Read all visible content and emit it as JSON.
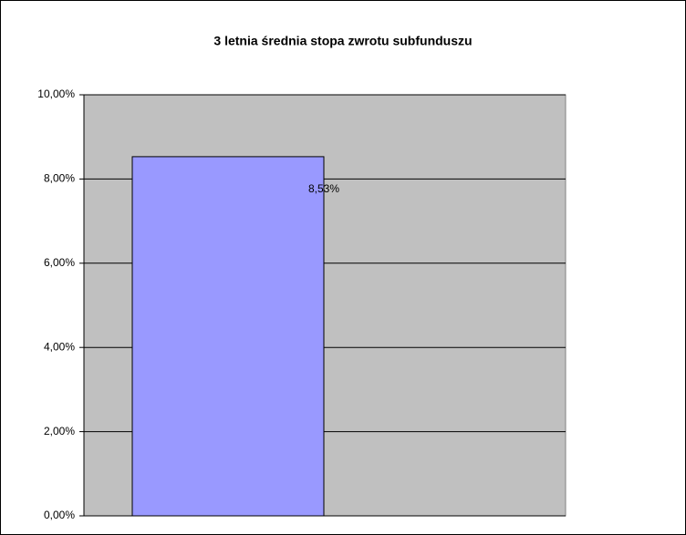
{
  "chart_data": {
    "type": "bar",
    "title": "3 letnia średnia stopa zwrotu subfunduszu",
    "categories": [
      null
    ],
    "values": [
      8.53
    ],
    "value_labels": [
      "8,53%"
    ],
    "color": "#9999ff",
    "ylim": [
      0,
      10
    ],
    "yticks": [
      {
        "value": 0,
        "label": "0,00%"
      },
      {
        "value": 2,
        "label": "2,00%"
      },
      {
        "value": 4,
        "label": "4,00%"
      },
      {
        "value": 6,
        "label": "6,00%"
      },
      {
        "value": 8,
        "label": "8,00%"
      },
      {
        "value": 10,
        "label": "10,00%"
      }
    ],
    "grid": true
  }
}
